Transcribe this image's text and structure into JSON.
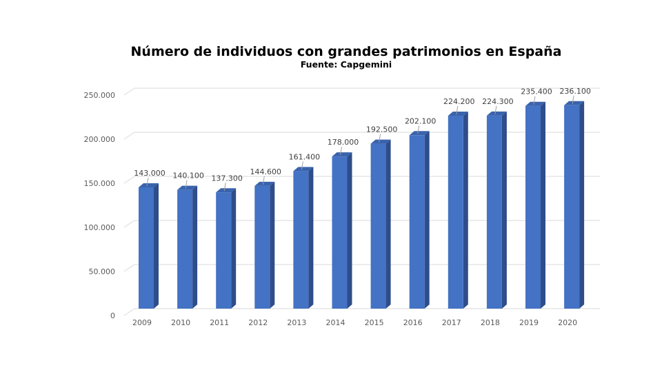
{
  "chart_data": {
    "type": "bar",
    "title": "Número de individuos con grandes patrimonios en España",
    "subtitle": "Fuente: Capgemini",
    "categories": [
      "2009",
      "2010",
      "2011",
      "2012",
      "2013",
      "2014",
      "2015",
      "2016",
      "2017",
      "2018",
      "2019",
      "2020"
    ],
    "values": [
      143000,
      140100,
      137300,
      144600,
      161400,
      178000,
      192500,
      202100,
      224200,
      224300,
      235400,
      236100
    ],
    "value_labels": [
      "143.000",
      "140.100",
      "137.300",
      "144.600",
      "161.400",
      "178.000",
      "192.500",
      "202.100",
      "224.200",
      "224.300",
      "235.400",
      "236.100"
    ],
    "ylim": [
      0,
      250000
    ],
    "yticks": [
      0,
      50000,
      100000,
      150000,
      200000,
      250000
    ],
    "ytick_labels": [
      "0",
      "50.000",
      "100.000",
      "150.000",
      "200.000",
      "250.000"
    ],
    "grid": true,
    "colors": {
      "bar_front": "#4472c4",
      "bar_side": "#2e4d8a",
      "bar_top": "#3a63ad",
      "grid": "#d9d9d9"
    }
  }
}
